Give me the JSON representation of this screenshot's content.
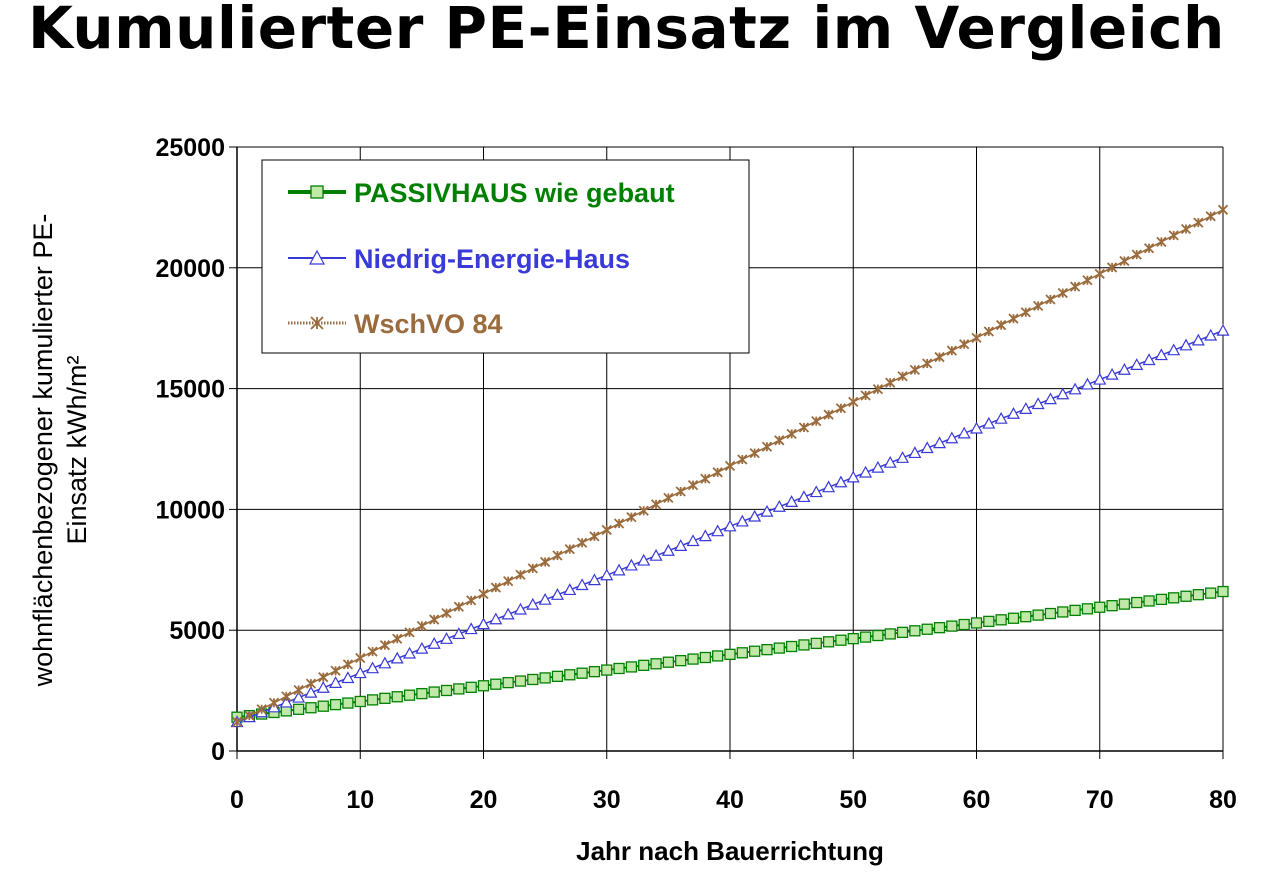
{
  "title": "Kumulierter PE-Einsatz im Vergleich",
  "chart_data": {
    "type": "line",
    "xlabel": "Jahr nach Bauerrichtung",
    "ylabel_line1": "wohnflächenbezogener kumulierter PE-",
    "ylabel_line2": "Einsatz kWh/m²",
    "xlim": [
      0,
      80
    ],
    "ylim": [
      0,
      25000
    ],
    "x_ticks": [
      0,
      10,
      20,
      30,
      40,
      50,
      60,
      70,
      80
    ],
    "x_tick_labels": [
      "0",
      "10",
      "20",
      "30",
      "40",
      "50",
      "60",
      "70",
      "80"
    ],
    "y_ticks": [
      0,
      5000,
      10000,
      15000,
      20000,
      25000
    ],
    "y_tick_labels": [
      "0",
      "5000",
      "10000",
      "15000",
      "20000",
      "25000"
    ],
    "grid": true,
    "legend_position": "top-left",
    "series": [
      {
        "name": "PASSIVHAUS wie gebaut",
        "start": 1400,
        "end": 6600,
        "step": 1,
        "color": "#008000",
        "marker_fill": "#c0e8a8",
        "marker": "square",
        "text_color": "#008000"
      },
      {
        "name": "Niedrig-Energie-Haus",
        "start": 1200,
        "end": 17400,
        "step": 1,
        "color": "#3a3ad8",
        "marker_fill": "#ffffff",
        "marker": "triangle",
        "text_color": "#3a3ad8"
      },
      {
        "name": "WschVO 84",
        "start": 1200,
        "end": 22400,
        "step": 1,
        "color": "#9a6b3c",
        "marker_fill": "none",
        "marker": "star",
        "text_color": "#9a6b3c"
      }
    ]
  }
}
